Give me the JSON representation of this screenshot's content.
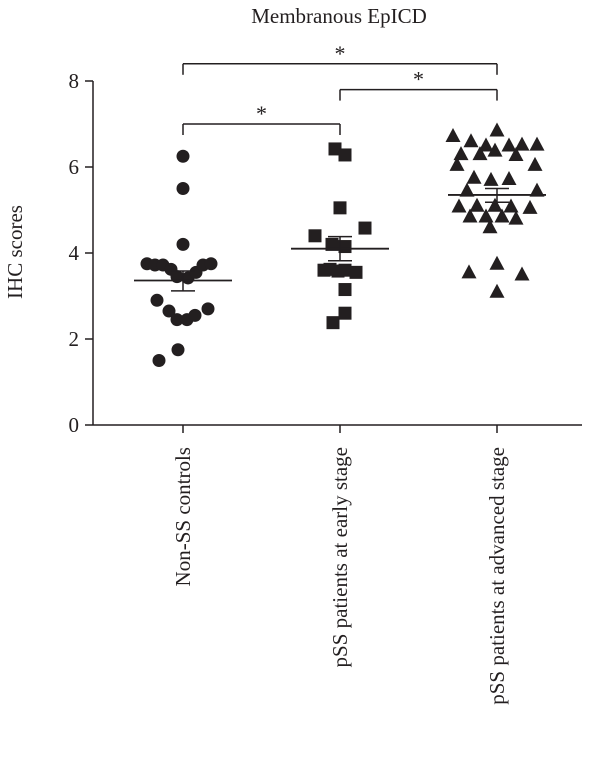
{
  "chart_data": {
    "type": "scatter",
    "title": "Membranous EpICD",
    "xlabel": "",
    "ylabel": "IHC scores",
    "ylim": [
      0,
      8
    ],
    "yticks": [
      0,
      2,
      4,
      6,
      8
    ],
    "grid": false,
    "legend": "none",
    "categories": [
      "Non-SS controls",
      "pSS patients at early stage",
      "pSS patients at advanced stage"
    ],
    "series": [
      {
        "category": "Non-SS controls",
        "marker": "circle",
        "mean": 3.36,
        "sem_low": 3.12,
        "sem_high": 3.58,
        "points": [
          {
            "x": 0.0,
            "y": 6.25
          },
          {
            "x": 0.0,
            "y": 5.5
          },
          {
            "x": 0.0,
            "y": 4.2
          },
          {
            "x": -0.36,
            "y": 3.75
          },
          {
            "x": -0.28,
            "y": 3.72
          },
          {
            "x": -0.2,
            "y": 3.72
          },
          {
            "x": -0.12,
            "y": 3.62
          },
          {
            "x": -0.06,
            "y": 3.45
          },
          {
            "x": 0.05,
            "y": 3.42
          },
          {
            "x": 0.13,
            "y": 3.55
          },
          {
            "x": 0.2,
            "y": 3.72
          },
          {
            "x": 0.28,
            "y": 3.75
          },
          {
            "x": -0.26,
            "y": 2.9
          },
          {
            "x": -0.14,
            "y": 2.65
          },
          {
            "x": -0.06,
            "y": 2.45
          },
          {
            "x": 0.04,
            "y": 2.45
          },
          {
            "x": 0.12,
            "y": 2.55
          },
          {
            "x": 0.25,
            "y": 2.7
          },
          {
            "x": -0.05,
            "y": 1.75
          },
          {
            "x": -0.24,
            "y": 1.5
          }
        ]
      },
      {
        "category": "pSS patients at early stage",
        "marker": "square",
        "mean": 4.1,
        "sem_low": 3.82,
        "sem_high": 4.38,
        "points": [
          {
            "x": -0.05,
            "y": 6.42
          },
          {
            "x": 0.05,
            "y": 6.28
          },
          {
            "x": 0.0,
            "y": 5.05
          },
          {
            "x": -0.25,
            "y": 4.4
          },
          {
            "x": 0.25,
            "y": 4.58
          },
          {
            "x": -0.08,
            "y": 4.2
          },
          {
            "x": 0.05,
            "y": 4.15
          },
          {
            "x": -0.16,
            "y": 3.6
          },
          {
            "x": -0.1,
            "y": 3.62
          },
          {
            "x": -0.02,
            "y": 3.58
          },
          {
            "x": 0.05,
            "y": 3.6
          },
          {
            "x": 0.16,
            "y": 3.55
          },
          {
            "x": 0.05,
            "y": 3.15
          },
          {
            "x": 0.05,
            "y": 2.6
          },
          {
            "x": -0.07,
            "y": 2.38
          }
        ]
      },
      {
        "category": "pSS patients at advanced stage",
        "marker": "triangle",
        "mean": 5.35,
        "sem_low": 5.18,
        "sem_high": 5.5,
        "points": [
          {
            "x": -0.44,
            "y": 6.72
          },
          {
            "x": -0.26,
            "y": 6.6
          },
          {
            "x": -0.11,
            "y": 6.5
          },
          {
            "x": 0.0,
            "y": 6.85
          },
          {
            "x": 0.12,
            "y": 6.5
          },
          {
            "x": 0.25,
            "y": 6.52
          },
          {
            "x": 0.4,
            "y": 6.52
          },
          {
            "x": -0.36,
            "y": 6.3
          },
          {
            "x": -0.17,
            "y": 6.3
          },
          {
            "x": -0.02,
            "y": 6.38
          },
          {
            "x": 0.19,
            "y": 6.28
          },
          {
            "x": -0.4,
            "y": 6.05
          },
          {
            "x": 0.38,
            "y": 6.05
          },
          {
            "x": -0.23,
            "y": 5.75
          },
          {
            "x": -0.06,
            "y": 5.7
          },
          {
            "x": 0.12,
            "y": 5.72
          },
          {
            "x": -0.3,
            "y": 5.45
          },
          {
            "x": 0.4,
            "y": 5.45
          },
          {
            "x": -0.38,
            "y": 5.08
          },
          {
            "x": -0.2,
            "y": 5.1
          },
          {
            "x": -0.02,
            "y": 5.1
          },
          {
            "x": 0.14,
            "y": 5.08
          },
          {
            "x": 0.33,
            "y": 5.05
          },
          {
            "x": -0.27,
            "y": 4.85
          },
          {
            "x": -0.11,
            "y": 4.85
          },
          {
            "x": 0.05,
            "y": 4.85
          },
          {
            "x": 0.19,
            "y": 4.8
          },
          {
            "x": -0.07,
            "y": 4.6
          },
          {
            "x": 0.0,
            "y": 3.75
          },
          {
            "x": -0.28,
            "y": 3.55
          },
          {
            "x": 0.25,
            "y": 3.5
          },
          {
            "x": 0.0,
            "y": 3.1
          }
        ]
      }
    ],
    "significance": [
      {
        "from": 0,
        "to": 2,
        "label": "*",
        "y": 8.4
      },
      {
        "from": 1,
        "to": 2,
        "label": "*",
        "y": 7.8
      },
      {
        "from": 0,
        "to": 1,
        "label": "*",
        "y": 7.0
      }
    ]
  }
}
